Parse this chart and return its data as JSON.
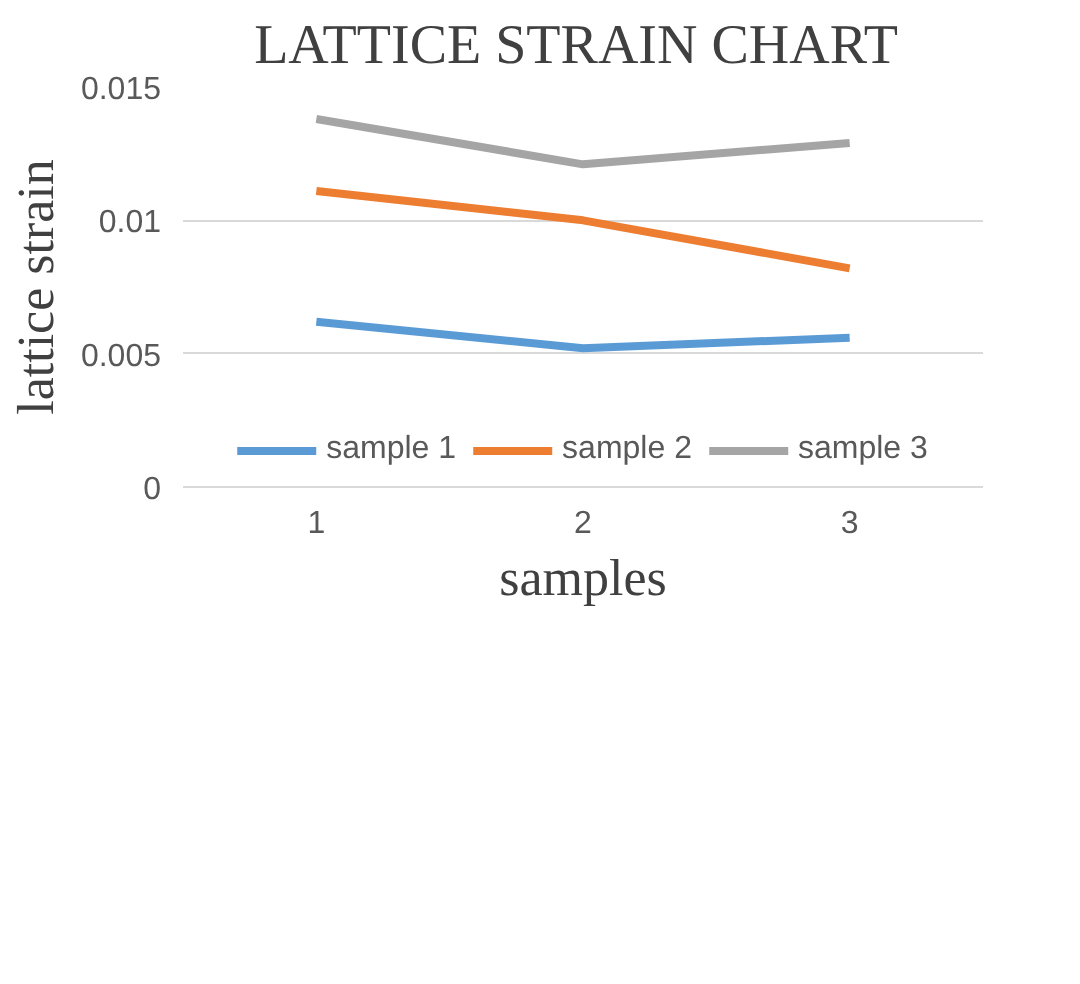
{
  "chart_data": {
    "type": "line",
    "title": "LATTICE  STRAIN CHART",
    "xlabel": "samples",
    "ylabel": "lattice strain",
    "categories": [
      "1",
      "2",
      "3"
    ],
    "series": [
      {
        "name": "sample 1",
        "color": "#5b9bd5",
        "values": [
          0.0062,
          0.0052,
          0.0056
        ]
      },
      {
        "name": "sample 2",
        "color": "#ed7d31",
        "values": [
          0.0111,
          0.01,
          0.0082
        ]
      },
      {
        "name": "sample 3",
        "color": "#a5a5a5",
        "values": [
          0.0138,
          0.0121,
          0.0129
        ]
      }
    ],
    "ylim": [
      0,
      0.015
    ],
    "yticks": [
      0,
      0.005,
      0.01,
      0.015
    ],
    "grid": "y",
    "legend": "bottom",
    "marker": "none",
    "line_style": "solid"
  }
}
